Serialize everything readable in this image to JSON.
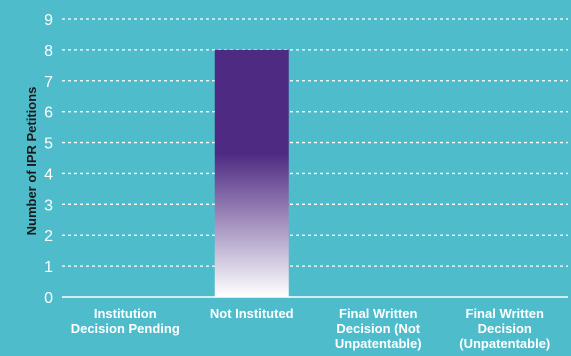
{
  "chart_data": {
    "type": "bar",
    "title": "",
    "xlabel": "",
    "ylabel": "Number of IPR Petitions",
    "ylim": [
      0,
      9
    ],
    "yticks": [
      0,
      1,
      2,
      3,
      4,
      5,
      6,
      7,
      8,
      9
    ],
    "grid": true,
    "categories": [
      [
        "Institution",
        "Decision Pending"
      ],
      [
        "Not Instituted"
      ],
      [
        "Final Written",
        "Decision (Not",
        "Unpatentable)"
      ],
      [
        "Final Written",
        "Decision",
        "(Unpatentable)"
      ]
    ],
    "values": [
      0,
      8,
      0,
      0
    ],
    "colors": {
      "background": "#4fbccc",
      "bar_top": "#4e2a82",
      "bar_bottom": "#ffffff",
      "grid": "#ffffff"
    }
  }
}
